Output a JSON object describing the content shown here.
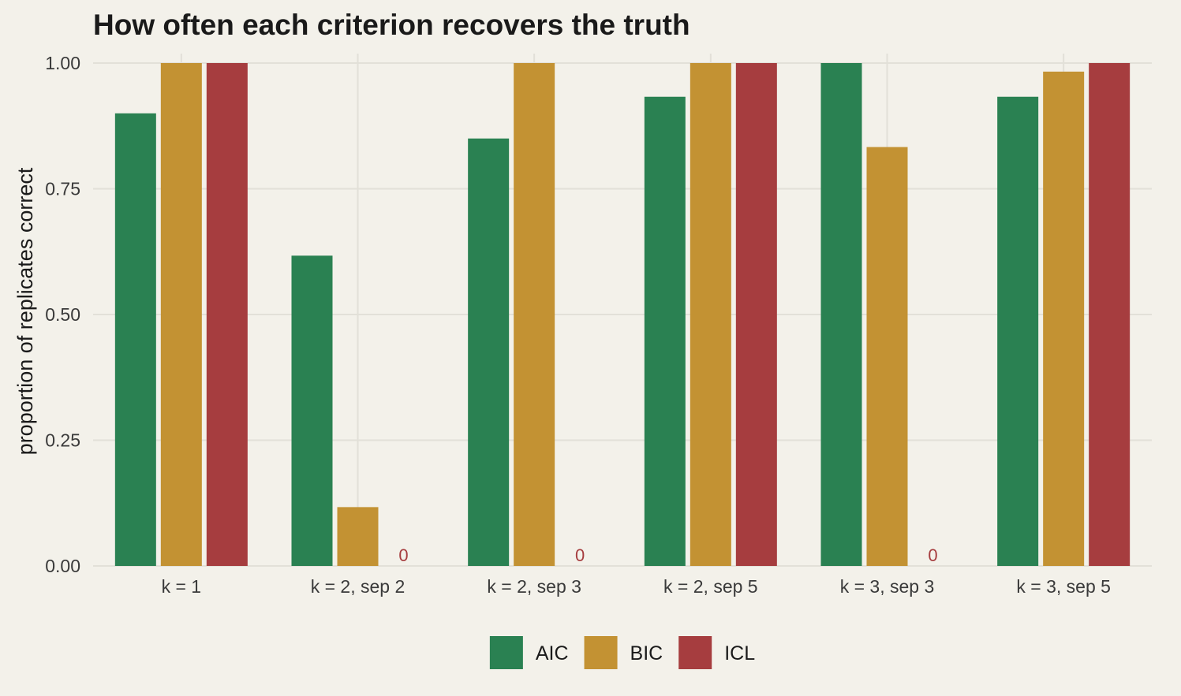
{
  "chart_data": {
    "type": "bar",
    "title": "How often each criterion recovers the truth",
    "xlabel": "",
    "ylabel": "proportion of replicates correct",
    "ylim": [
      0,
      1
    ],
    "y_ticks": [
      "0.00",
      "0.25",
      "0.50",
      "0.75",
      "1.00"
    ],
    "y_tick_values": [
      0,
      0.25,
      0.5,
      0.75,
      1.0
    ],
    "categories": [
      "k = 1",
      "k = 2, sep 2",
      "k = 2, sep 3",
      "k = 2, sep 5",
      "k = 3, sep 3",
      "k = 3, sep 5"
    ],
    "series": [
      {
        "name": "AIC",
        "color": "#2a8152",
        "values": [
          0.9,
          0.617,
          0.85,
          0.933,
          1.0,
          0.933
        ]
      },
      {
        "name": "BIC",
        "color": "#c39233",
        "values": [
          1.0,
          0.117,
          1.0,
          1.0,
          0.833,
          0.983
        ]
      },
      {
        "name": "ICL",
        "color": "#a63d3f",
        "values": [
          1.0,
          0,
          0,
          1.0,
          0,
          1.0
        ]
      }
    ],
    "zero_labels": [
      {
        "series": "ICL",
        "category": "k = 2, sep 2",
        "text": "0"
      },
      {
        "series": "ICL",
        "category": "k = 2, sep 3",
        "text": "0"
      },
      {
        "series": "ICL",
        "category": "k = 3, sep 3",
        "text": "0"
      }
    ],
    "grid": true,
    "legend_position": "bottom"
  }
}
